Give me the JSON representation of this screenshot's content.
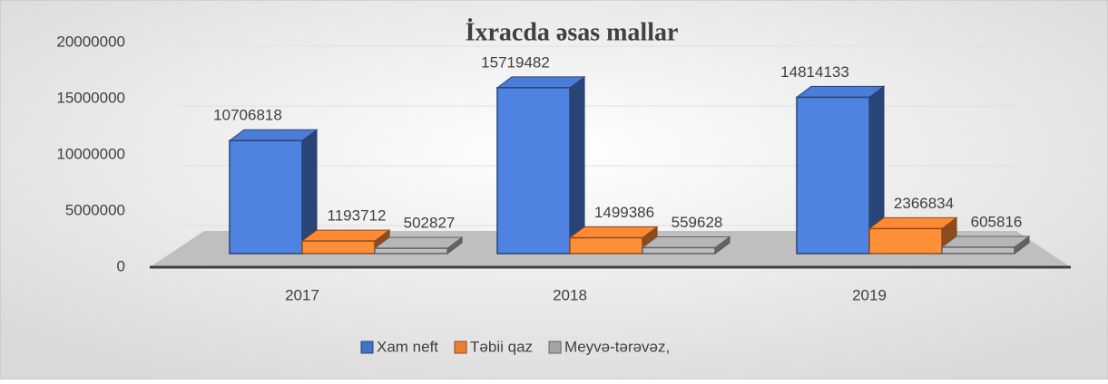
{
  "chart_data": {
    "type": "bar3d",
    "title": "İxracda əsas mallar",
    "categories": [
      "2017",
      "2018",
      "2019"
    ],
    "series": [
      {
        "name": "Xam neft",
        "color": "#4472c4",
        "values": [
          10706818,
          15719482,
          14814133
        ]
      },
      {
        "name": "Təbii qaz",
        "color": "#ed7d31",
        "values": [
          1193712,
          1499386,
          2366834
        ]
      },
      {
        "name": "Meyvə-tərəvəz,",
        "color": "#a5a5a5",
        "values": [
          502827,
          559628,
          605816
        ]
      }
    ],
    "ylim": [
      0,
      20000000
    ],
    "yticks": [
      0,
      5000000,
      10000000,
      15000000,
      20000000
    ],
    "grid": true,
    "legend": "bottom"
  }
}
